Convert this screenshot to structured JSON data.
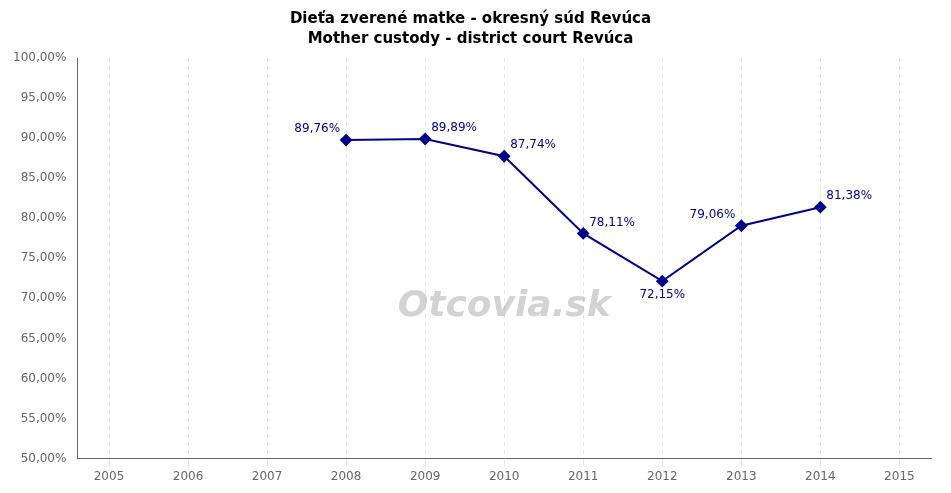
{
  "chart_data": {
    "type": "line",
    "title": "Dieťa zverené matke - okresný súd Revúca",
    "subtitle": "Mother custody - district court Revúca",
    "x": [
      2008,
      2009,
      2010,
      2011,
      2012,
      2013,
      2014
    ],
    "values": [
      0.8976,
      0.8989,
      0.8774,
      0.7811,
      0.7215,
      0.7906,
      0.8138
    ],
    "value_labels": [
      "89,76%",
      "89,89%",
      "87,74%",
      "78,11%",
      "72,15%",
      "79,06%",
      "81,38%"
    ],
    "data_labels": true,
    "color": "#00008B",
    "marker": "diamond",
    "line_style": "solid",
    "xlim": [
      2004.6,
      2015.4
    ],
    "xticks": [
      2005,
      2006,
      2007,
      2008,
      2009,
      2010,
      2011,
      2012,
      2013,
      2014,
      2015
    ],
    "ylim": [
      0.5,
      1.0
    ],
    "yticks": [
      {
        "value": 0.5,
        "label": "50,00%"
      },
      {
        "value": 0.55,
        "label": "55,00%"
      },
      {
        "value": 0.6,
        "label": "60,00%"
      },
      {
        "value": 0.65,
        "label": "65,00%"
      },
      {
        "value": 0.7,
        "label": "70,00%"
      },
      {
        "value": 0.75,
        "label": "75,00%"
      },
      {
        "value": 0.8,
        "label": "80,00%"
      },
      {
        "value": 0.85,
        "label": "85,00%"
      },
      {
        "value": 0.9,
        "label": "90,00%"
      },
      {
        "value": 0.95,
        "label": "95,00%"
      },
      {
        "value": 1.0,
        "label": "100,00%"
      }
    ],
    "grid": "x",
    "annotations": [
      "Otcovia.sk"
    ]
  }
}
